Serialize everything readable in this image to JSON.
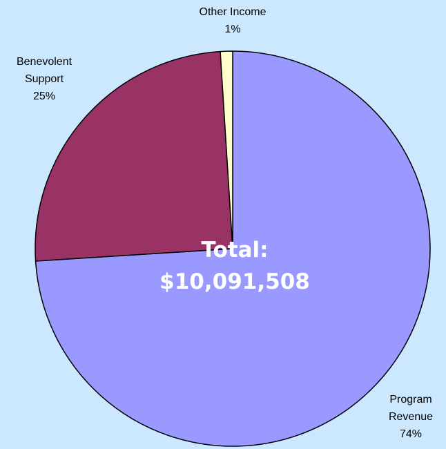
{
  "chart_data": {
    "type": "pie",
    "title": "",
    "slices": [
      {
        "name": "Program Revenue",
        "name_lines": [
          "Program",
          "Revenue"
        ],
        "percent_label": "74%",
        "value": 74,
        "color": "#9999FF"
      },
      {
        "name": "Benevolent Support",
        "name_lines": [
          "Benevolent",
          "Support"
        ],
        "percent_label": "25%",
        "value": 25,
        "color": "#993366"
      },
      {
        "name": "Other Income",
        "name_lines": [
          "Other Income"
        ],
        "percent_label": "1%",
        "value": 1,
        "color": "#FFFFCC"
      }
    ],
    "center_text": {
      "label": "Total:",
      "amount": "$10,091,508"
    },
    "legend": "none"
  }
}
